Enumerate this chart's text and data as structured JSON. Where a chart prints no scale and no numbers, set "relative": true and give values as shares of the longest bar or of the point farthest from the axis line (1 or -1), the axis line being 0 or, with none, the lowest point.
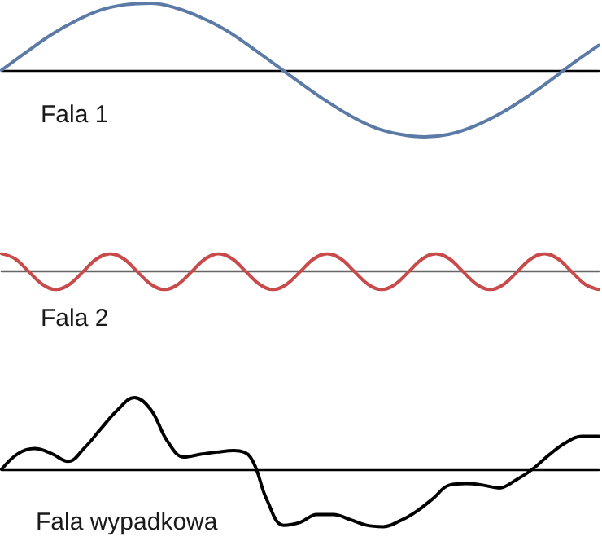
{
  "chart_data": [
    {
      "type": "line",
      "title": "Fala 1",
      "relative": true,
      "tick_labels": false,
      "marker": "none",
      "line_style": "solid",
      "categories": [
        null,
        null,
        null,
        null,
        null,
        null,
        null,
        null,
        null,
        null,
        null,
        null,
        null,
        null,
        null,
        null,
        null,
        null,
        null,
        null,
        null,
        null,
        null,
        null,
        null
      ],
      "series": [
        {
          "color": "#5b7ba6",
          "values": [
            0,
            0.27,
            0.53,
            0.74,
            0.9,
            0.98,
            1,
            0.93,
            0.79,
            0.6,
            0.35,
            0.08,
            -0.19,
            -0.45,
            -0.68,
            -0.86,
            -0.96,
            -1,
            -0.96,
            -0.84,
            -0.66,
            -0.43,
            -0.17,
            0.11,
            0.37
          ]
        }
      ]
    },
    {
      "type": "line",
      "title": "Fala 2",
      "relative": true,
      "tick_labels": false,
      "marker": "none",
      "line_style": "solid",
      "categories": [
        null,
        null,
        null,
        null,
        null,
        null,
        null,
        null,
        null,
        null,
        null,
        null,
        null,
        null,
        null,
        null,
        null,
        null,
        null,
        null,
        null,
        null,
        null,
        null,
        null,
        null,
        null,
        null,
        null,
        null,
        null,
        null,
        null,
        null,
        null,
        null,
        null,
        null,
        null,
        null,
        null,
        null,
        null,
        null,
        null
      ],
      "series": [
        {
          "color": "#c94a4a",
          "values": [
            1,
            0.71,
            0,
            -0.71,
            -1,
            -0.71,
            0,
            0.71,
            1,
            0.71,
            0,
            -0.71,
            -1,
            -0.71,
            0,
            0.71,
            1,
            0.71,
            0,
            -0.71,
            -1,
            -0.71,
            0,
            0.71,
            1,
            0.71,
            0,
            -0.71,
            -1,
            -0.71,
            0,
            0.71,
            1,
            0.71,
            0,
            -0.71,
            -1,
            -0.71,
            0,
            0.71,
            1,
            0.71,
            0,
            -0.71,
            -1
          ]
        }
      ]
    },
    {
      "type": "line",
      "title": "Fala wypadkowa",
      "relative": true,
      "tick_labels": false,
      "marker": "none",
      "line_style": "solid",
      "categories": [
        null,
        null,
        null,
        null,
        null,
        null,
        null,
        null,
        null,
        null,
        null,
        null,
        null,
        null,
        null,
        null,
        null,
        null,
        null,
        null,
        null,
        null,
        null,
        null,
        null,
        null,
        null,
        null,
        null,
        null,
        null,
        null,
        null,
        null,
        null,
        null,
        null
      ],
      "series": [
        {
          "color": "#000000",
          "values": [
            0,
            0.22,
            0.29,
            0.22,
            0.11,
            0.3,
            0.57,
            0.83,
            1,
            0.83,
            0.39,
            0.17,
            0.21,
            0.24,
            0.26,
            0.17,
            -0.43,
            -0.78,
            -0.74,
            -0.63,
            -0.63,
            -0.7,
            -0.78,
            -0.8,
            -0.72,
            -0.59,
            -0.41,
            -0.22,
            -0.2,
            -0.22,
            -0.26,
            -0.15,
            0,
            0.2,
            0.37,
            0.46,
            0.46
          ]
        }
      ]
    }
  ]
}
